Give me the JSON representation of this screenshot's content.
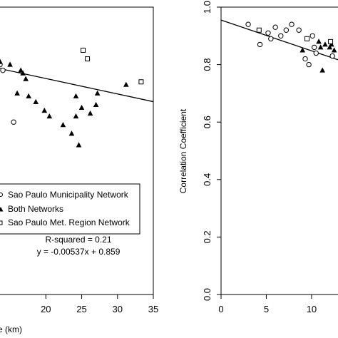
{
  "chart_data": [
    {
      "type": "scatter",
      "xlabel": "e (km)",
      "ylabel": "",
      "xlim": [
        13.5,
        35
      ],
      "ylim": [
        0,
        1.0
      ],
      "x_ticks": [
        "20",
        "25",
        "30",
        "35"
      ],
      "legend_placement": "bottom-left",
      "series": [
        {
          "name": "Sao Paulo Municipality Network",
          "marker": "circle",
          "points": [
            [
              13.6,
              0.8
            ],
            [
              14.0,
              0.78
            ],
            [
              15.5,
              0.6
            ]
          ]
        },
        {
          "name": "Both Networks",
          "marker": "triangle",
          "points": [
            [
              13.6,
              0.81
            ],
            [
              15.0,
              0.8
            ],
            [
              16.5,
              0.78
            ],
            [
              16.8,
              0.77
            ],
            [
              17.2,
              0.75
            ],
            [
              16.0,
              0.7
            ],
            [
              17.6,
              0.69
            ],
            [
              18.6,
              0.67
            ],
            [
              19.8,
              0.64
            ],
            [
              20.5,
              0.62
            ],
            [
              24.2,
              0.69
            ],
            [
              24.2,
              0.62
            ],
            [
              25.0,
              0.65
            ],
            [
              26.2,
              0.63
            ],
            [
              27.0,
              0.66
            ],
            [
              27.2,
              0.7
            ],
            [
              31.2,
              0.73
            ],
            [
              22.4,
              0.59
            ],
            [
              23.6,
              0.56
            ],
            [
              24.6,
              0.52
            ]
          ]
        },
        {
          "name": "Sao Paulo Met. Region Network",
          "marker": "square",
          "points": [
            [
              25.2,
              0.85
            ],
            [
              25.8,
              0.82
            ],
            [
              33.3,
              0.74
            ]
          ]
        }
      ],
      "fit_line": {
        "slope": -0.00537,
        "intercept": 0.859
      },
      "annotations": [
        "R-squared = 0.21",
        "y = -0.00537x + 0.859"
      ]
    },
    {
      "type": "scatter",
      "xlabel": "",
      "ylabel": "Correlation Coefficient",
      "xlim": [
        0,
        13
      ],
      "ylim": [
        0,
        1.0
      ],
      "x_ticks": [
        "0",
        "5",
        "10"
      ],
      "y_ticks": [
        "0.0",
        "0.2",
        "0.4",
        "0.6",
        "0.8",
        "1.0"
      ],
      "series": [
        {
          "name": "Sao Paulo Municipality Network",
          "marker": "circle",
          "points": [
            [
              3.0,
              0.94
            ],
            [
              4.3,
              0.87
            ],
            [
              5.2,
              0.91
            ],
            [
              5.5,
              0.89
            ],
            [
              6.0,
              0.93
            ],
            [
              6.6,
              0.9
            ],
            [
              7.2,
              0.92
            ],
            [
              7.8,
              0.94
            ],
            [
              8.6,
              0.92
            ],
            [
              9.3,
              0.82
            ],
            [
              9.7,
              0.8
            ],
            [
              10.1,
              0.9
            ],
            [
              10.3,
              0.86
            ],
            [
              10.5,
              0.84
            ],
            [
              12.3,
              0.83
            ]
          ]
        },
        {
          "name": "Both Networks",
          "marker": "triangle",
          "points": [
            [
              9.0,
              0.85
            ],
            [
              10.8,
              0.88
            ],
            [
              11.0,
              0.86
            ],
            [
              11.2,
              0.78
            ],
            [
              11.5,
              0.87
            ],
            [
              12.0,
              0.86
            ],
            [
              12.2,
              0.87
            ],
            [
              12.5,
              0.85
            ]
          ]
        },
        {
          "name": "Sao Paulo Met. Region Network",
          "marker": "square",
          "points": [
            [
              4.2,
              0.92
            ],
            [
              9.5,
              0.89
            ],
            [
              12.1,
              0.88
            ]
          ]
        }
      ],
      "fit_line": {
        "slope": -0.0107,
        "intercept": 0.955
      }
    }
  ]
}
